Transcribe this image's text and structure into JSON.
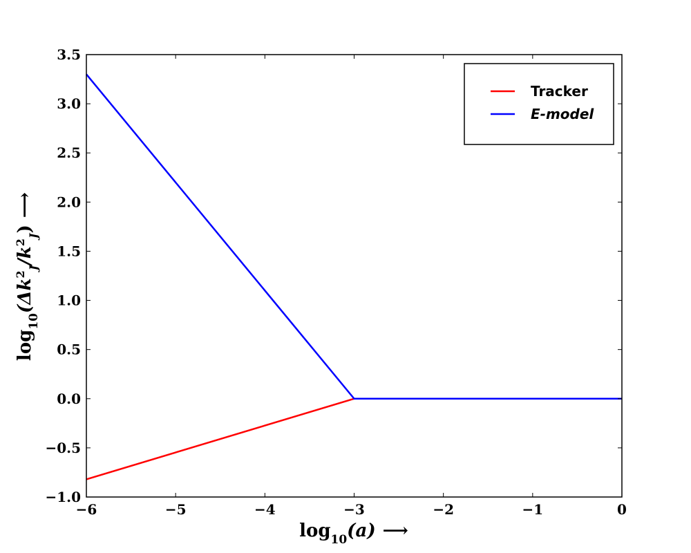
{
  "chart_data": {
    "type": "line",
    "x_label": {
      "main": "log",
      "sub": "10",
      "arg": "(a)",
      "arrow": "⟶"
    },
    "y_label": {
      "main": "log",
      "sub": "10",
      "open": "(Δk",
      "sup1": "2",
      "sub1": "J",
      "mid": "/k",
      "sup2": "2",
      "sub2": "J",
      "close": ")",
      "arrow": "⟶"
    },
    "xlim": [
      -6,
      0
    ],
    "ylim": [
      -1.0,
      3.5
    ],
    "x_ticks": [
      -6,
      -5,
      -4,
      -3,
      -2,
      -1,
      0
    ],
    "x_tick_labels": [
      "−6",
      "−5",
      "−4",
      "−3",
      "−2",
      "−1",
      "0"
    ],
    "y_ticks": [
      -1.0,
      -0.5,
      0.0,
      0.5,
      1.0,
      1.5,
      2.0,
      2.5,
      3.0,
      3.5
    ],
    "y_tick_labels": [
      "−1.0",
      "−0.5",
      "0.0",
      "0.5",
      "1.0",
      "1.5",
      "2.0",
      "2.5",
      "3.0",
      "3.5"
    ],
    "grid": false,
    "legend_position": "top-right",
    "series": [
      {
        "name": "Tracker",
        "color": "#ff0000",
        "italic": false,
        "x": [
          -6,
          -3,
          0
        ],
        "y": [
          -0.82,
          0.0,
          0.0
        ]
      },
      {
        "name": "E-model",
        "color": "#0000ff",
        "italic": true,
        "x": [
          -6,
          -3,
          0
        ],
        "y": [
          3.3,
          0.0,
          0.0
        ]
      }
    ]
  }
}
